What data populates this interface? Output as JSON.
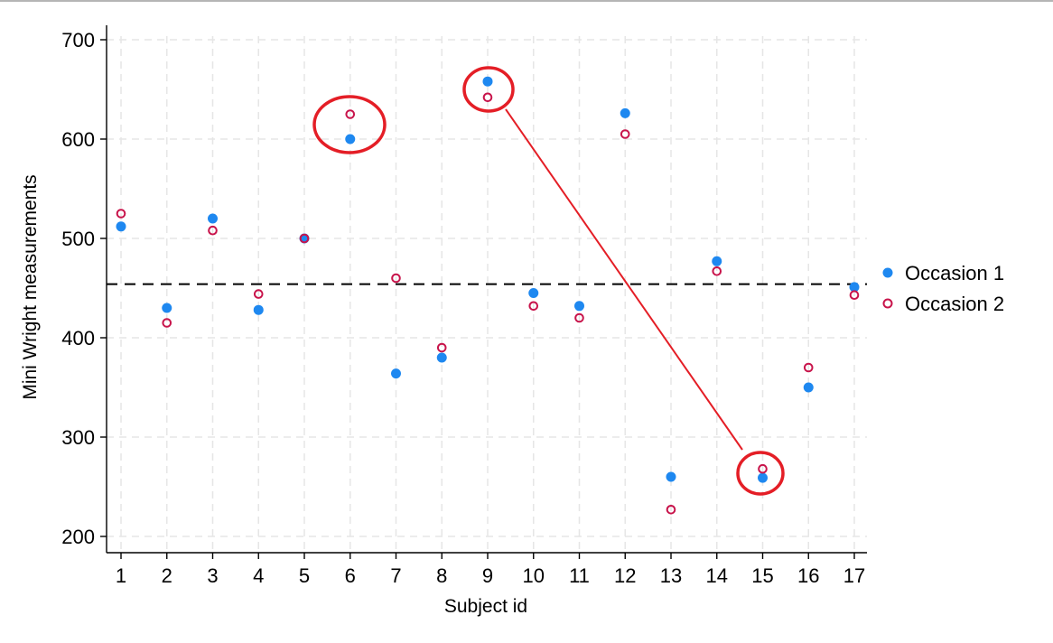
{
  "chart_data": {
    "type": "scatter",
    "xlabel": "Subject id",
    "ylabel": "Mini Wright measurements",
    "x_ticks": [
      1,
      2,
      3,
      4,
      5,
      6,
      7,
      8,
      9,
      10,
      11,
      12,
      13,
      14,
      15,
      16,
      17
    ],
    "y_ticks": [
      200,
      300,
      400,
      500,
      600,
      700
    ],
    "xlim": [
      0.7,
      17.3
    ],
    "ylim": [
      185,
      712
    ],
    "grid": true,
    "legend_position": "right",
    "reference_line": {
      "y": 454,
      "style": "dashed"
    },
    "series": [
      {
        "name": "Occasion 1",
        "marker": "filled-circle",
        "color": "#1e88f0",
        "x": [
          1,
          2,
          3,
          4,
          5,
          6,
          7,
          8,
          9,
          10,
          11,
          12,
          13,
          14,
          15,
          16,
          17
        ],
        "y": [
          512,
          430,
          520,
          428,
          500,
          600,
          364,
          380,
          658,
          445,
          432,
          626,
          260,
          477,
          259,
          350,
          451
        ]
      },
      {
        "name": "Occasion 2",
        "marker": "hollow-circle",
        "color": "#c8144b",
        "x": [
          1,
          2,
          3,
          4,
          5,
          6,
          7,
          8,
          9,
          10,
          11,
          12,
          13,
          14,
          15,
          16,
          17
        ],
        "y": [
          525,
          415,
          508,
          444,
          500,
          625,
          460,
          390,
          642,
          432,
          420,
          605,
          227,
          467,
          268,
          370,
          443
        ]
      }
    ],
    "annotations": {
      "color": "#e41e26",
      "ellipses": [
        {
          "target": "subject 6"
        },
        {
          "target": "subject 9"
        },
        {
          "target": "subject 15"
        }
      ],
      "connector": {
        "from": "subject 9",
        "to": "subject 15"
      }
    }
  }
}
